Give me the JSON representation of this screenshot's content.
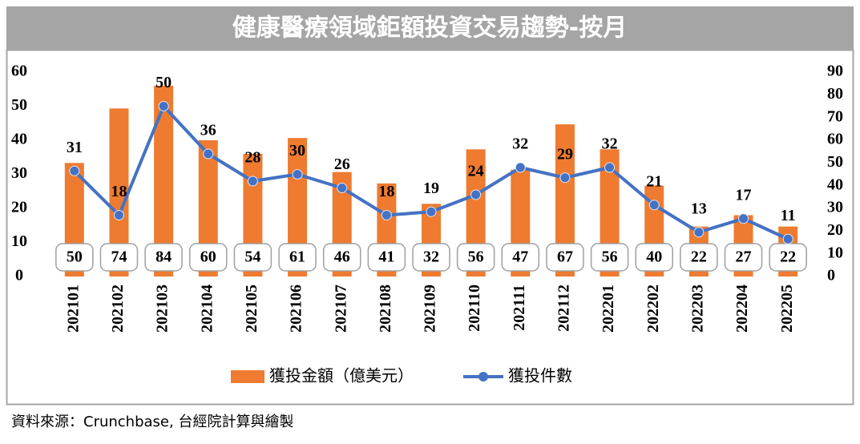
{
  "chart_data": {
    "type": "bar",
    "title": "健康醫療領域鉅額投資交易趨勢-按月",
    "source": "資料來源：Crunchbase, 台經院計算與繪製",
    "categories": [
      "202101",
      "202102",
      "202103",
      "202104",
      "202105",
      "202106",
      "202107",
      "202108",
      "202109",
      "202110",
      "202111",
      "202112",
      "202201",
      "202202",
      "202203",
      "202204",
      "202205"
    ],
    "series": [
      {
        "name": "獲投金額（億美元）",
        "type": "bar",
        "axis": "y2",
        "color": "#ee7b30",
        "values": [
          50,
          74,
          84,
          60,
          54,
          61,
          46,
          41,
          32,
          56,
          47,
          67,
          56,
          40,
          22,
          27,
          22
        ]
      },
      {
        "name": "獲投件數",
        "type": "line",
        "axis": "y",
        "color": "#4472c4",
        "values": [
          31,
          18,
          50,
          36,
          28,
          30,
          26,
          18,
          19,
          24,
          32,
          29,
          32,
          21,
          13,
          17,
          11
        ]
      }
    ],
    "ylim": [
      0,
      60
    ],
    "yticks": [
      0,
      10,
      20,
      30,
      40,
      50,
      60
    ],
    "y2lim": [
      0,
      90
    ],
    "y2ticks": [
      0,
      10,
      20,
      30,
      40,
      50,
      60,
      70,
      80,
      90
    ],
    "legend": "bottom"
  }
}
